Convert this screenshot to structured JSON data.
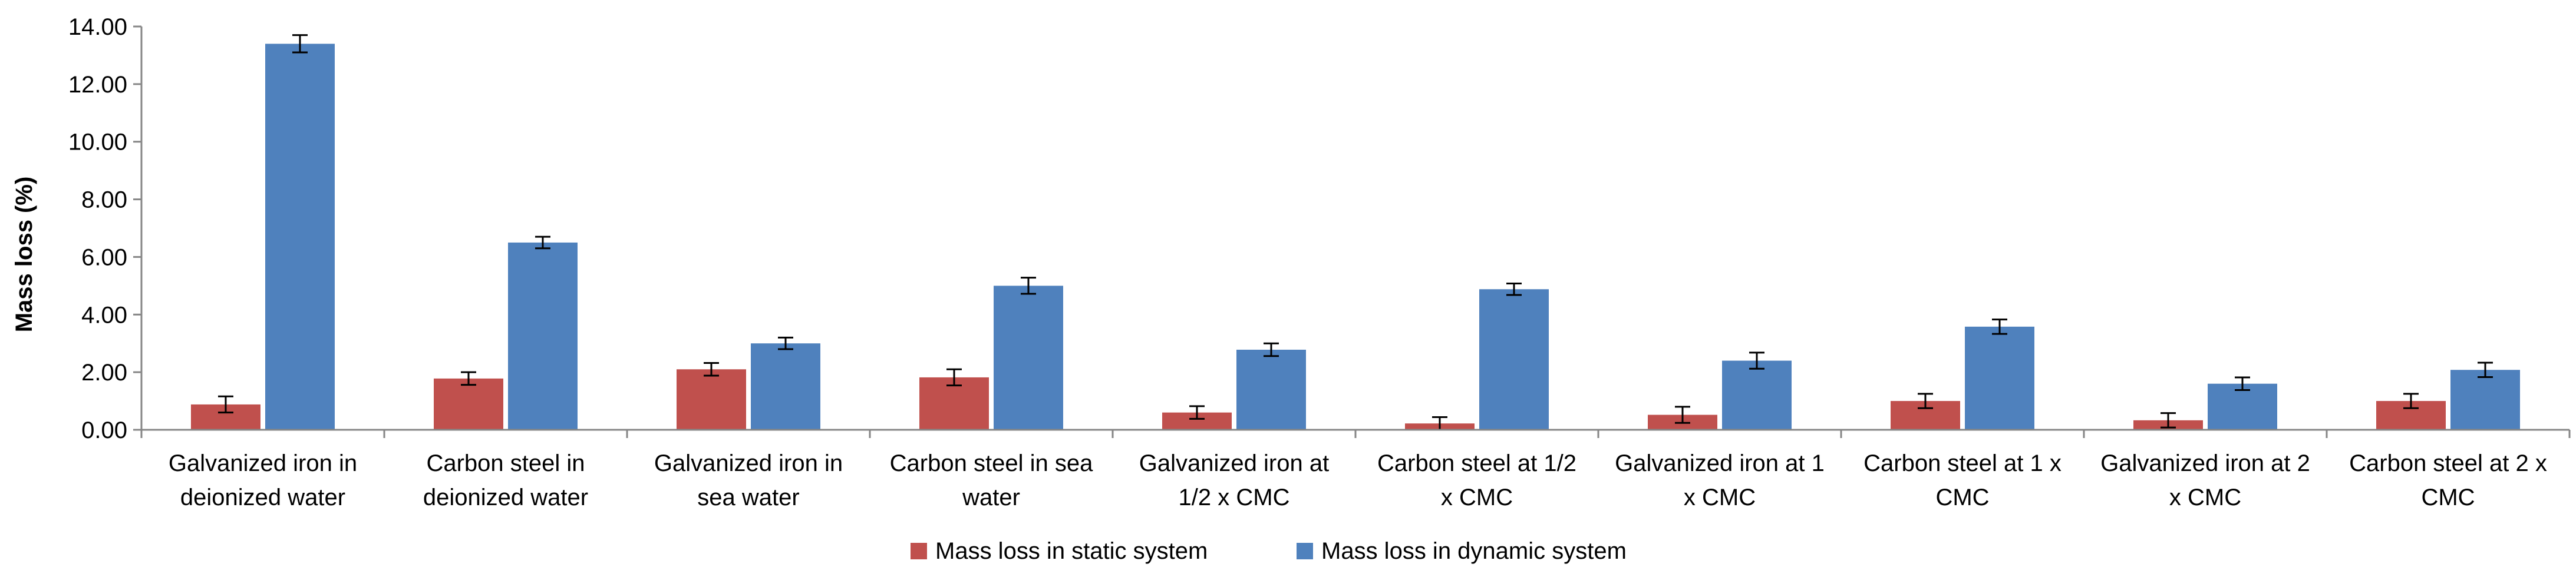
{
  "chart_data": {
    "type": "bar",
    "title": "",
    "xlabel": "",
    "ylabel": "Mass loss (%)",
    "ylim": [
      0,
      14
    ],
    "ytick_step": 2,
    "ytick_labels": [
      "0.00",
      "2.00",
      "4.00",
      "6.00",
      "8.00",
      "10.00",
      "12.00",
      "14.00"
    ],
    "grid": false,
    "legend_position": "bottom-center",
    "categories": [
      [
        "Galvanized iron in",
        "deionized water"
      ],
      [
        "Carbon steel in",
        "deionized water"
      ],
      [
        "Galvanized iron in",
        "sea water"
      ],
      [
        "Carbon steel in sea",
        "water"
      ],
      [
        "Galvanized iron at",
        "1/2 x CMC"
      ],
      [
        "Carbon steel at 1/2",
        "x CMC"
      ],
      [
        "Galvanized iron at 1",
        "x CMC"
      ],
      [
        "Carbon steel at 1 x",
        "CMC"
      ],
      [
        "Galvanized iron at 2",
        "x CMC"
      ],
      [
        "Carbon steel at 2 x",
        "CMC"
      ]
    ],
    "series": [
      {
        "name": "Mass loss in static system",
        "color": "#c0504d",
        "values": [
          0.88,
          1.78,
          2.1,
          1.82,
          0.6,
          0.22,
          0.52,
          1.0,
          0.33,
          1.0
        ],
        "errors": [
          0.28,
          0.22,
          0.22,
          0.28,
          0.22,
          0.22,
          0.28,
          0.25,
          0.25,
          0.25
        ]
      },
      {
        "name": "Mass loss in dynamic system",
        "color": "#4f81bd",
        "values": [
          13.4,
          6.5,
          3.0,
          5.0,
          2.78,
          4.88,
          2.4,
          3.58,
          1.6,
          2.08
        ],
        "errors": [
          0.3,
          0.2,
          0.2,
          0.28,
          0.22,
          0.2,
          0.28,
          0.25,
          0.22,
          0.25
        ]
      }
    ]
  }
}
